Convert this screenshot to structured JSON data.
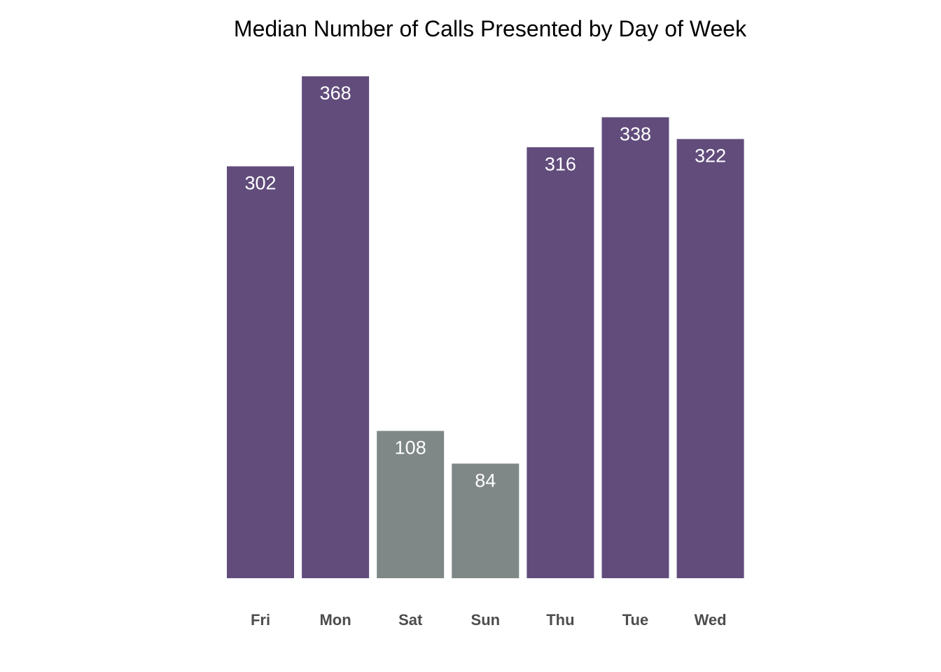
{
  "chart_data": {
    "type": "bar",
    "title": "Median Number of Calls Presented by Day of Week",
    "xlabel": "",
    "ylabel": "",
    "categories": [
      "Fri",
      "Mon",
      "Sat",
      "Sun",
      "Thu",
      "Tue",
      "Wed"
    ],
    "values": [
      302,
      368,
      108,
      84,
      316,
      338,
      322
    ],
    "data_labels": [
      "302",
      "368",
      "108",
      "84",
      "316",
      "338",
      "322"
    ],
    "bar_colors": [
      "#614c7b",
      "#614c7b",
      "#7f8787",
      "#7f8787",
      "#614c7b",
      "#614c7b",
      "#614c7b"
    ],
    "weekday_color": "#614c7b",
    "weekend_color": "#7f8787",
    "label_color": "#ffffff",
    "tick_label_color": "#4d4d4d",
    "ylim": [
      0,
      368
    ],
    "grid": false,
    "legend": "none"
  }
}
